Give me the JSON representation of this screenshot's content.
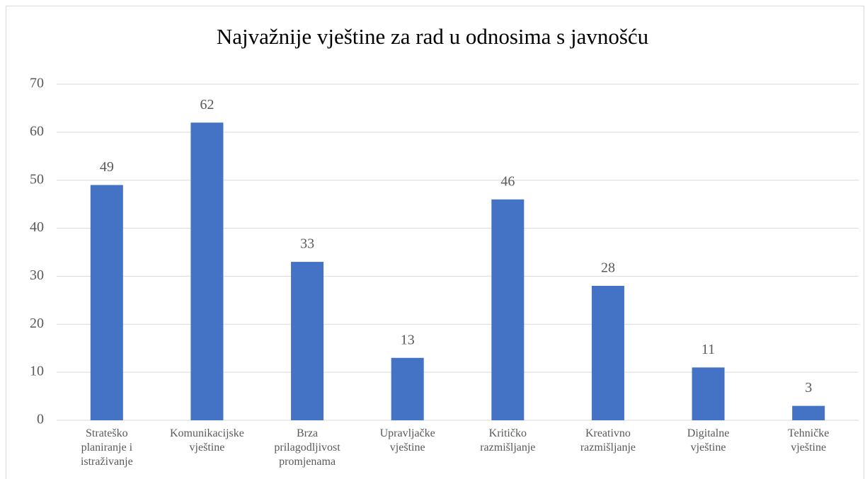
{
  "chart_data": {
    "type": "bar",
    "title": "Najvažnije vještine za rad u odnosima s javnošću",
    "categories": [
      [
        "Strateško",
        "planiranje i",
        "istraživanje"
      ],
      [
        "Komunikacijske",
        "vještine"
      ],
      [
        "Brza",
        "prilagodljivost",
        "promjenama"
      ],
      [
        "Upravljačke",
        "vještine"
      ],
      [
        "Kritičko",
        "razmišljanje"
      ],
      [
        "Kreativno",
        "razmišljanje"
      ],
      [
        "Digitalne",
        "vještine"
      ],
      [
        "Tehničke",
        "vještine"
      ]
    ],
    "values": [
      49,
      62,
      33,
      13,
      46,
      28,
      11,
      3
    ],
    "color": "#4472c4",
    "ylim": [
      0,
      70
    ],
    "yticks": [
      0,
      10,
      20,
      30,
      40,
      50,
      60,
      70
    ],
    "grid": true,
    "data_labels": true
  }
}
